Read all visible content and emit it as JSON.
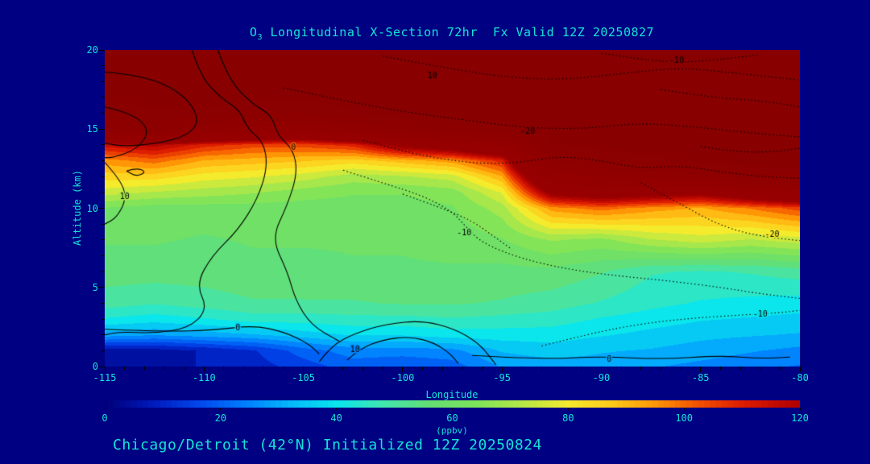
{
  "colors": {
    "background": "#000083",
    "text_accent": "#15E2D6",
    "contour_line": "#000000"
  },
  "title": {
    "prefix": "O",
    "sub": "3",
    "rest": " Longitudinal X-Section 72hr  Fx Valid 12Z 20250827"
  },
  "caption": "Chicago/Detroit (42°N) Initialized 12Z 20250824",
  "axes": {
    "y": {
      "label": "Altitude (km)",
      "ticks": [
        0,
        5,
        10,
        15,
        20
      ],
      "range": [
        0,
        20
      ],
      "minor_step": 1
    },
    "x": {
      "label": "Longitude",
      "ticks": [
        -115,
        -110,
        -105,
        -100,
        -95,
        -90,
        -85,
        -80
      ],
      "range": [
        -115,
        -80
      ],
      "minor_step": 1
    }
  },
  "colorbar": {
    "ticks": [
      0,
      20,
      40,
      60,
      80,
      100,
      120
    ],
    "range": [
      0,
      120
    ],
    "units": "(ppbv)"
  },
  "chart_data": {
    "type": "heatmap",
    "title": "O3 Longitudinal X-Section 72hr  Fx Valid 12Z 20250827",
    "xlabel": "Longitude",
    "ylabel": "Altitude (km)",
    "value_units": "ppbv",
    "x_range": [
      -115,
      -80
    ],
    "y_range": [
      0,
      20
    ],
    "fill_level_step": 5,
    "x": [
      -115,
      -112.5,
      -110,
      -107.5,
      -105,
      -102.5,
      -100,
      -97.5,
      -95,
      -92.5,
      -90,
      -87.5,
      -85,
      -82.5,
      -80
    ],
    "y": [
      0,
      1,
      2,
      3,
      4,
      6,
      8,
      10,
      11,
      12,
      13,
      14,
      15,
      16,
      18,
      20
    ],
    "values": [
      [
        5,
        5,
        8,
        10,
        15,
        20,
        18,
        20,
        28,
        30,
        30,
        28,
        26,
        24,
        22
      ],
      [
        5,
        5,
        8,
        12,
        20,
        25,
        25,
        26,
        33,
        35,
        33,
        32,
        30,
        28,
        26
      ],
      [
        30,
        28,
        30,
        32,
        35,
        38,
        38,
        40,
        40,
        40,
        38,
        36,
        34,
        33,
        32
      ],
      [
        42,
        40,
        42,
        45,
        45,
        46,
        46,
        47,
        46,
        45,
        42,
        40,
        38,
        37,
        36
      ],
      [
        50,
        48,
        50,
        52,
        52,
        52,
        53,
        53,
        52,
        50,
        47,
        44,
        42,
        41,
        40
      ],
      [
        55,
        55,
        55,
        56,
        56,
        57,
        57,
        57,
        56,
        56,
        53,
        48,
        47,
        48,
        50
      ],
      [
        58,
        58,
        57,
        58,
        58,
        58,
        58,
        59,
        62,
        68,
        66,
        72,
        75,
        72,
        75
      ],
      [
        62,
        60,
        60,
        60,
        60,
        60,
        60,
        62,
        70,
        95,
        100,
        95,
        92,
        98,
        105
      ],
      [
        75,
        72,
        70,
        68,
        65,
        63,
        63,
        65,
        78,
        130,
        140,
        135,
        130,
        145,
        155
      ],
      [
        85,
        85,
        80,
        78,
        75,
        70,
        72,
        75,
        92,
        160,
        180,
        185,
        190,
        205,
        215
      ],
      [
        95,
        100,
        92,
        90,
        88,
        85,
        90,
        95,
        110,
        200,
        215,
        225,
        235,
        245,
        250
      ],
      [
        115,
        120,
        110,
        105,
        105,
        110,
        130,
        140,
        160,
        230,
        240,
        245,
        250,
        250,
        250
      ],
      [
        200,
        210,
        180,
        170,
        160,
        180,
        200,
        210,
        220,
        245,
        250,
        250,
        250,
        250,
        250
      ],
      [
        220,
        230,
        230,
        220,
        220,
        230,
        240,
        240,
        245,
        250,
        250,
        250,
        250,
        250,
        250
      ],
      [
        250,
        250,
        250,
        250,
        250,
        250,
        250,
        250,
        250,
        250,
        250,
        250,
        250,
        250,
        250
      ],
      [
        250,
        250,
        250,
        250,
        250,
        250,
        250,
        250,
        250,
        250,
        250,
        250,
        250,
        250,
        250
      ]
    ],
    "colormap": [
      [
        0,
        0,
        0,
        120
      ],
      [
        8,
        0,
        25,
        185
      ],
      [
        16,
        0,
        70,
        235
      ],
      [
        24,
        0,
        125,
        255
      ],
      [
        32,
        5,
        185,
        250
      ],
      [
        40,
        10,
        230,
        235
      ],
      [
        48,
        65,
        230,
        175
      ],
      [
        56,
        100,
        222,
        115
      ],
      [
        64,
        125,
        228,
        90
      ],
      [
        72,
        180,
        232,
        70
      ],
      [
        80,
        245,
        235,
        45
      ],
      [
        88,
        255,
        200,
        25
      ],
      [
        95,
        255,
        150,
        5
      ],
      [
        102,
        245,
        85,
        0
      ],
      [
        110,
        222,
        30,
        0
      ],
      [
        118,
        185,
        5,
        0
      ],
      [
        126,
        152,
        0,
        0
      ],
      [
        250,
        136,
        0,
        0
      ]
    ],
    "overlay_contours": [
      {
        "value": 0,
        "style": "solid",
        "points": [
          [
            -115,
            18.6
          ],
          [
            -113,
            18.4
          ],
          [
            -111,
            17.2
          ],
          [
            -110.2,
            15.6
          ],
          [
            -110.8,
            14.6
          ],
          [
            -112.3,
            14.1
          ],
          [
            -114,
            13.9
          ],
          [
            -115,
            14.1
          ]
        ]
      },
      {
        "value": 0,
        "style": "solid",
        "points": [
          [
            -115,
            16.4
          ],
          [
            -113.6,
            16.0
          ],
          [
            -112.7,
            14.9
          ],
          [
            -113.4,
            13.7
          ],
          [
            -114.6,
            13.2
          ],
          [
            -115,
            13.2
          ]
        ]
      },
      {
        "value": 0,
        "style": "solid",
        "points": [
          [
            -109.3,
            20
          ],
          [
            -108.8,
            18.2
          ],
          [
            -107.6,
            16.6
          ],
          [
            -106.6,
            15.9
          ],
          [
            -106.3,
            14.6
          ],
          [
            -105.5,
            13.7
          ],
          [
            -105.3,
            12.2
          ],
          [
            -105.8,
            10.2
          ],
          [
            -106.6,
            8.1
          ],
          [
            -105.8,
            6.0
          ],
          [
            -105.4,
            4.2
          ],
          [
            -104.6,
            2.6
          ],
          [
            -103.2,
            1.6
          ]
        ]
      },
      {
        "value": 0,
        "style": "solid",
        "points": [
          [
            -110.6,
            20
          ],
          [
            -110.2,
            18.4
          ],
          [
            -109.2,
            17.0
          ],
          [
            -108.2,
            16.2
          ],
          [
            -107.8,
            15.0
          ],
          [
            -107.0,
            14.2
          ],
          [
            -106.8,
            12.6
          ],
          [
            -107.3,
            10.6
          ],
          [
            -108.3,
            8.6
          ],
          [
            -109.6,
            7.0
          ],
          [
            -110.4,
            5.2
          ],
          [
            -109.8,
            3.6
          ],
          [
            -110.8,
            2.4
          ],
          [
            -112.6,
            2.1
          ],
          [
            -114.2,
            2.2
          ],
          [
            -115,
            2.0
          ]
        ]
      },
      {
        "value": 10,
        "style": "solid",
        "points": [
          [
            -113.9,
            12.35
          ],
          [
            -113.4,
            12.55
          ],
          [
            -112.9,
            12.3
          ],
          [
            -113.4,
            12.0
          ],
          [
            -113.9,
            12.35
          ]
        ]
      },
      {
        "value": 10,
        "style": "solid",
        "points": [
          [
            -115,
            12.9
          ],
          [
            -114.2,
            11.8
          ],
          [
            -113.9,
            10.6
          ],
          [
            -114.4,
            9.4
          ],
          [
            -115,
            9.0
          ]
        ]
      },
      {
        "value": 0,
        "style": "solid",
        "points": [
          [
            -115,
            2.35
          ],
          [
            -112,
            2.2
          ],
          [
            -109.5,
            2.3
          ],
          [
            -107.5,
            2.6
          ],
          [
            -106,
            2.2
          ],
          [
            -104.8,
            1.5
          ],
          [
            -104.2,
            0.8
          ]
        ]
      },
      {
        "value": 10,
        "style": "solid",
        "points": [
          [
            -104.2,
            0.3
          ],
          [
            -103.6,
            1.3
          ],
          [
            -102.4,
            2.1
          ],
          [
            -100.8,
            2.7
          ],
          [
            -99.0,
            2.9
          ],
          [
            -97.4,
            2.4
          ],
          [
            -96.2,
            1.5
          ],
          [
            -95.6,
            0.6
          ],
          [
            -95.3,
            0.1
          ]
        ]
      },
      {
        "value": 10,
        "style": "solid",
        "points": [
          [
            -102.8,
            0.4
          ],
          [
            -102.2,
            1.1
          ],
          [
            -101.0,
            1.7
          ],
          [
            -99.6,
            1.9
          ],
          [
            -98.4,
            1.5
          ],
          [
            -97.6,
            0.8
          ],
          [
            -97.2,
            0.2
          ]
        ]
      },
      {
        "value": 0,
        "style": "solid",
        "points": [
          [
            -96.5,
            0.7
          ],
          [
            -93,
            0.45
          ],
          [
            -90,
            0.65
          ],
          [
            -87,
            0.45
          ],
          [
            -84,
            0.7
          ],
          [
            -82,
            0.5
          ],
          [
            -80.5,
            0.6
          ]
        ]
      },
      {
        "value": -10,
        "style": "dotted",
        "points": [
          [
            -101,
            19.6
          ],
          [
            -98,
            18.9
          ],
          [
            -95,
            18.3
          ],
          [
            -92,
            18.1
          ],
          [
            -89,
            18.5
          ],
          [
            -86,
            18.9
          ],
          [
            -83,
            18.5
          ],
          [
            -80,
            18.1
          ]
        ]
      },
      {
        "value": -20,
        "style": "dotted",
        "points": [
          [
            -106,
            17.6
          ],
          [
            -103,
            16.8
          ],
          [
            -100,
            16.1
          ],
          [
            -97,
            15.6
          ],
          [
            -94,
            15.1
          ],
          [
            -91,
            15.0
          ],
          [
            -88,
            15.4
          ],
          [
            -85,
            15.1
          ],
          [
            -82,
            14.7
          ],
          [
            -80,
            14.5
          ]
        ]
      },
      {
        "value": -20,
        "style": "dotted",
        "points": [
          [
            -102,
            14.3
          ],
          [
            -100,
            13.6
          ],
          [
            -98,
            13.1
          ],
          [
            -96,
            12.8
          ],
          [
            -94,
            12.9
          ],
          [
            -92,
            13.3
          ],
          [
            -90,
            13.0
          ],
          [
            -88,
            12.5
          ],
          [
            -86,
            12.7
          ],
          [
            -84,
            12.3
          ],
          [
            -82,
            12.0
          ],
          [
            -80,
            11.9
          ]
        ]
      },
      {
        "value": -10,
        "style": "dotted",
        "points": [
          [
            -103,
            12.4
          ],
          [
            -101,
            11.6
          ],
          [
            -99,
            10.8
          ],
          [
            -97.5,
            9.8
          ],
          [
            -96.8,
            8.8
          ],
          [
            -96,
            7.8
          ],
          [
            -94,
            6.8
          ],
          [
            -91.5,
            6.1
          ],
          [
            -89,
            5.7
          ],
          [
            -86.5,
            5.4
          ],
          [
            -84,
            5.0
          ],
          [
            -82,
            4.6
          ],
          [
            -80,
            4.3
          ]
        ]
      },
      {
        "value": -10,
        "style": "dotted",
        "points": [
          [
            -100,
            10.9
          ],
          [
            -98,
            10.0
          ],
          [
            -96.5,
            9.2
          ],
          [
            -95.5,
            8.3
          ],
          [
            -94.5,
            7.4
          ]
        ]
      },
      {
        "value": -20,
        "style": "dotted",
        "points": [
          [
            -88,
            11.6
          ],
          [
            -86.2,
            10.4
          ],
          [
            -84.5,
            9.2
          ],
          [
            -83,
            8.5
          ],
          [
            -81.5,
            8.15
          ],
          [
            -80,
            7.95
          ]
        ]
      },
      {
        "value": -10,
        "style": "dotted",
        "points": [
          [
            -93,
            1.3
          ],
          [
            -90.5,
            2.1
          ],
          [
            -88,
            2.7
          ],
          [
            -85.5,
            3.05
          ],
          [
            -83,
            3.25
          ],
          [
            -81,
            3.4
          ],
          [
            -80,
            3.55
          ]
        ]
      },
      {
        "value": -10,
        "style": "dotted",
        "points": [
          [
            -90,
            19.8
          ],
          [
            -88,
            19.4
          ],
          [
            -86,
            19.2
          ],
          [
            -84,
            19.4
          ],
          [
            -82,
            19.7
          ]
        ]
      },
      {
        "value": -10,
        "style": "dotted",
        "points": [
          [
            -87,
            17.5
          ],
          [
            -84.5,
            17.0
          ],
          [
            -82,
            16.8
          ],
          [
            -80,
            16.4
          ]
        ]
      },
      {
        "value": -20,
        "style": "dotted",
        "points": [
          [
            -85,
            13.9
          ],
          [
            -83,
            13.5
          ],
          [
            -81,
            13.6
          ],
          [
            -80,
            13.8
          ]
        ]
      }
    ],
    "contour_labels": [
      {
        "text": "10",
        "lon": -114.0,
        "alt": 10.7
      },
      {
        "text": "0",
        "lon": -105.5,
        "alt": 13.8
      },
      {
        "text": "10",
        "lon": -98.5,
        "alt": 18.35
      },
      {
        "text": "-20",
        "lon": -93.7,
        "alt": 14.85
      },
      {
        "text": "-10",
        "lon": -86.2,
        "alt": 19.3
      },
      {
        "text": "-10",
        "lon": -96.9,
        "alt": 8.45
      },
      {
        "text": "-20",
        "lon": -81.4,
        "alt": 8.3
      },
      {
        "text": "-10",
        "lon": -82.0,
        "alt": 3.3
      },
      {
        "text": "0",
        "lon": -108.3,
        "alt": 2.4
      },
      {
        "text": "10",
        "lon": -102.4,
        "alt": 1.05
      },
      {
        "text": "0",
        "lon": -89.6,
        "alt": 0.45
      }
    ]
  }
}
